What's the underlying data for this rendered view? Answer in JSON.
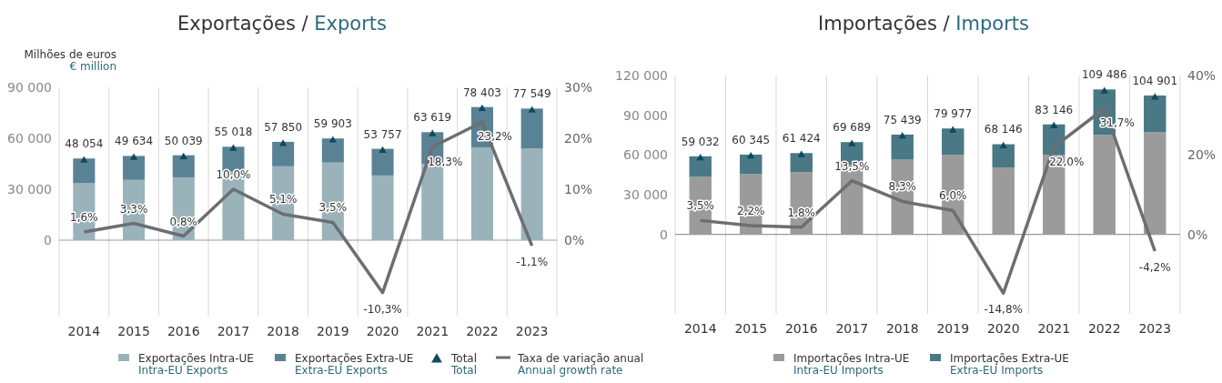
{
  "chart_data": [
    {
      "type": "bar",
      "title": "Exportações / Exports",
      "ylabel": "Milhões de euros\n€ million",
      "stacked": true,
      "categories": [
        "2014",
        "2015",
        "2016",
        "2017",
        "2018",
        "2019",
        "2020",
        "2021",
        "2022",
        "2023"
      ],
      "series": [
        {
          "name": "Exportações Intra-UE\nIntra-EU Exports",
          "color": "#9ab3bb",
          "values": [
            33500,
            35500,
            37000,
            40400,
            43500,
            45700,
            38100,
            45000,
            54500,
            54100
          ]
        },
        {
          "name": "Exportações Extra-UE\nExtra-EU Exports",
          "color": "#5a8295",
          "values": [
            14600,
            14100,
            13000,
            14600,
            14400,
            14200,
            15700,
            18600,
            23900,
            23400
          ]
        },
        {
          "name": "Total\nTotal",
          "type": "scatter",
          "marker": "triangle",
          "color": "#0d4a5e",
          "values": [
            48054,
            49634,
            50039,
            55018,
            57850,
            59903,
            53757,
            63619,
            78403,
            77549
          ],
          "value_labels": [
            "48 054",
            "49 634",
            "50 039",
            "55 018",
            "57 850",
            "59 903",
            "53 757",
            "63 619",
            "78 403",
            "77 549"
          ]
        },
        {
          "name": "Taxa de variação anual\nAnnual growth rate",
          "type": "line",
          "axis": "y2",
          "marker": "none",
          "line_style": "solid",
          "color": "#6d6e71",
          "values": [
            1.6,
            3.3,
            0.8,
            10.0,
            5.1,
            3.5,
            -10.3,
            18.3,
            23.2,
            -1.1
          ],
          "value_labels": [
            "1,6%",
            "3,3%",
            "0,8%",
            "10,0%",
            "5,1%",
            "3,5%",
            "-10,3%",
            "18,3%",
            "23,2%",
            "-1,1%"
          ]
        }
      ],
      "ylim": [
        -45000,
        90000
      ],
      "yticks": [
        {
          "value": 0,
          "label": "0"
        },
        {
          "value": 30000,
          "label": "30 000"
        },
        {
          "value": 60000,
          "label": "60 000"
        },
        {
          "value": 90000,
          "label": "90 000"
        }
      ],
      "y2lim": [
        -15,
        30
      ],
      "y2ticks": [
        {
          "value": 0,
          "label": "0%"
        },
        {
          "value": 10,
          "label": "10%"
        },
        {
          "value": 20,
          "label": "20%"
        },
        {
          "value": 30,
          "label": "30%"
        }
      ],
      "grid": "x",
      "legend": "bottom"
    },
    {
      "type": "bar",
      "title": "Importações / Imports",
      "stacked": true,
      "categories": [
        "2014",
        "2015",
        "2016",
        "2017",
        "2018",
        "2019",
        "2020",
        "2021",
        "2022",
        "2023"
      ],
      "series": [
        {
          "name": "Importações Intra-UE\nIntra-EU Imports",
          "color": "#9b9b9b",
          "values": [
            43500,
            45500,
            46900,
            52700,
            56400,
            60100,
            50400,
            60100,
            75100,
            77100
          ]
        },
        {
          "name": "Importações Extra-UE\nExtra-EU Imports",
          "color": "#4a7884",
          "values": [
            15500,
            14800,
            14500,
            17000,
            19000,
            19900,
            17700,
            23000,
            34400,
            27800
          ]
        },
        {
          "type": "scatter",
          "marker": "triangle",
          "color": "#0d4a5e",
          "values": [
            59032,
            60345,
            61424,
            69689,
            75439,
            79977,
            68146,
            83146,
            109486,
            104901
          ],
          "value_labels": [
            "59 032",
            "60 345",
            "61 424",
            "69 689",
            "75 439",
            "79 977",
            "68 146",
            "83 146",
            "109 486",
            "104 901"
          ]
        },
        {
          "type": "line",
          "axis": "y2",
          "marker": "none",
          "line_style": "solid",
          "color": "#6d6e71",
          "values": [
            3.5,
            2.2,
            1.8,
            13.5,
            8.3,
            6.0,
            -14.8,
            22.0,
            31.7,
            -4.2
          ],
          "value_labels": [
            "3,5%",
            "2,2%",
            "1,8%",
            "13,5%",
            "8,3%",
            "6,0%",
            "-14,8%",
            "22,0%",
            "31,7%",
            "-4,2%"
          ]
        }
      ],
      "ylim": [
        -60000,
        120000
      ],
      "yticks": [
        {
          "value": 0,
          "label": "0"
        },
        {
          "value": 30000,
          "label": "30 000"
        },
        {
          "value": 60000,
          "label": "60 000"
        },
        {
          "value": 90000,
          "label": "90 000"
        },
        {
          "value": 120000,
          "label": "120 000"
        }
      ],
      "y2lim": [
        -20,
        40
      ],
      "y2ticks": [
        {
          "value": 0,
          "label": "0%"
        },
        {
          "value": 20,
          "label": "20%"
        },
        {
          "value": 40,
          "label": "40%"
        }
      ],
      "grid": "x",
      "legend": "bottom"
    }
  ]
}
